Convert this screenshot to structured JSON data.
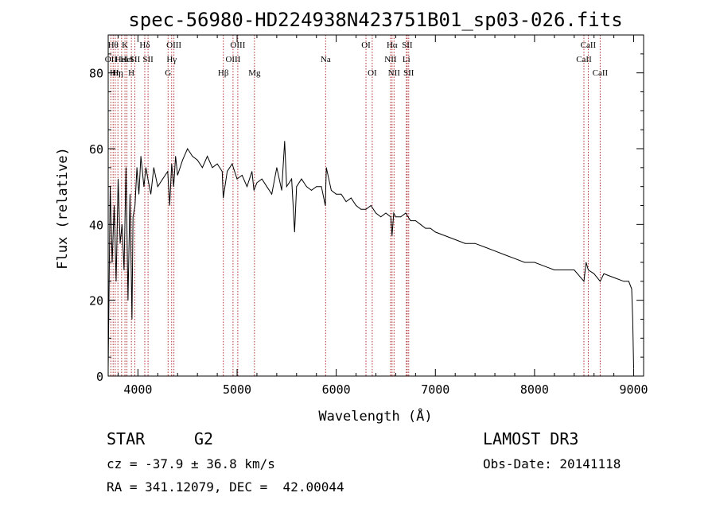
{
  "chart_data": {
    "type": "line",
    "title": "spec-56980-HD224938N423751B01_sp03-026.fits",
    "xlabel": "Wavelength (Å)",
    "ylabel": "Flux (relative)",
    "xlim": [
      3700,
      9100
    ],
    "ylim": [
      0,
      90
    ],
    "xticks": [
      4000,
      5000,
      6000,
      7000,
      8000,
      9000
    ],
    "yticks": [
      0,
      20,
      40,
      60,
      80
    ],
    "xtick_labels": [
      "4000",
      "5000",
      "6000",
      "7000",
      "8000",
      "9000"
    ],
    "ytick_labels": [
      "0",
      "20",
      "40",
      "60",
      "80"
    ],
    "series": [
      {
        "name": "spectrum",
        "x": [
          3700,
          3720,
          3740,
          3760,
          3780,
          3800,
          3820,
          3840,
          3860,
          3880,
          3900,
          3920,
          3940,
          3950,
          3970,
          3990,
          4010,
          4030,
          4060,
          4080,
          4100,
          4130,
          4160,
          4200,
          4250,
          4300,
          4320,
          4340,
          4360,
          4380,
          4400,
          4450,
          4500,
          4550,
          4600,
          4650,
          4700,
          4750,
          4800,
          4850,
          4860,
          4900,
          4950,
          5000,
          5050,
          5100,
          5150,
          5170,
          5200,
          5250,
          5300,
          5350,
          5400,
          5450,
          5480,
          5500,
          5550,
          5580,
          5600,
          5650,
          5700,
          5750,
          5800,
          5850,
          5890,
          5900,
          5950,
          6000,
          6050,
          6100,
          6150,
          6200,
          6250,
          6300,
          6350,
          6400,
          6450,
          6500,
          6550,
          6563,
          6580,
          6600,
          6650,
          6700,
          6750,
          6800,
          6850,
          6900,
          6950,
          7000,
          7100,
          7200,
          7300,
          7400,
          7500,
          7600,
          7700,
          7800,
          7900,
          8000,
          8100,
          8200,
          8300,
          8400,
          8498,
          8520,
          8542,
          8600,
          8662,
          8700,
          8800,
          8900,
          8950,
          8980,
          8990,
          9000
        ],
        "y": [
          2,
          50,
          30,
          45,
          25,
          52,
          35,
          40,
          28,
          55,
          20,
          48,
          15,
          42,
          45,
          55,
          48,
          58,
          50,
          55,
          52,
          48,
          55,
          50,
          52,
          54,
          45,
          56,
          50,
          58,
          53,
          57,
          60,
          58,
          57,
          55,
          58,
          55,
          56,
          54,
          47,
          54,
          56,
          52,
          53,
          50,
          54,
          49,
          51,
          52,
          50,
          48,
          55,
          49,
          62,
          50,
          52,
          38,
          50,
          52,
          50,
          49,
          50,
          50,
          45,
          55,
          49,
          48,
          48,
          46,
          47,
          45,
          44,
          44,
          45,
          43,
          42,
          43,
          42,
          37,
          43,
          42,
          42,
          43,
          41,
          41,
          40,
          39,
          39,
          38,
          37,
          36,
          35,
          35,
          34,
          33,
          32,
          31,
          30,
          30,
          29,
          28,
          28,
          28,
          25,
          30,
          28,
          27,
          25,
          27,
          26,
          25,
          25,
          23,
          15,
          2
        ]
      }
    ],
    "lines": [
      {
        "x": 3727,
        "label": "OII",
        "row": 2
      },
      {
        "x": 3750,
        "label": "Hθ",
        "row": 1
      },
      {
        "x": 3771,
        "label": "Hη",
        "row": 3
      },
      {
        "x": 3798,
        "label": "Hη",
        "row": 3
      },
      {
        "x": 3835,
        "label": "HeI",
        "row": 2
      },
      {
        "x": 3869,
        "label": "K",
        "row": 1
      },
      {
        "x": 3889,
        "label": "HeI",
        "row": 2
      },
      {
        "x": 3934,
        "label": "H",
        "row": 3
      },
      {
        "x": 3969,
        "label": "SII",
        "row": 2
      },
      {
        "x": 4069,
        "label": "Hδ",
        "row": 1
      },
      {
        "x": 4102,
        "label": "SII",
        "row": 2
      },
      {
        "x": 4304,
        "label": "G",
        "row": 3
      },
      {
        "x": 4340,
        "label": "Hγ",
        "row": 2
      },
      {
        "x": 4363,
        "label": "OIII",
        "row": 1
      },
      {
        "x": 4861,
        "label": "Hβ",
        "row": 3
      },
      {
        "x": 4959,
        "label": "OIII",
        "row": 2
      },
      {
        "x": 5007,
        "label": "OIII",
        "row": 1
      },
      {
        "x": 5175,
        "label": "Mg",
        "row": 3
      },
      {
        "x": 5893,
        "label": "Na",
        "row": 2
      },
      {
        "x": 6300,
        "label": "OI",
        "row": 1
      },
      {
        "x": 6363,
        "label": "OI",
        "row": 3
      },
      {
        "x": 6548,
        "label": "NII",
        "row": 2
      },
      {
        "x": 6563,
        "label": "Hα",
        "row": 1
      },
      {
        "x": 6583,
        "label": "NII",
        "row": 3
      },
      {
        "x": 6707,
        "label": "Li",
        "row": 2
      },
      {
        "x": 6716,
        "label": "SII",
        "row": 1
      },
      {
        "x": 6731,
        "label": "SII",
        "row": 3
      },
      {
        "x": 8498,
        "label": "CaII",
        "row": 2
      },
      {
        "x": 8542,
        "label": "CaII",
        "row": 1
      },
      {
        "x": 8662,
        "label": "CaII",
        "row": 3
      }
    ]
  },
  "info": {
    "class_label": "STAR",
    "subclass": "G2",
    "survey": "LAMOST DR3",
    "redshift": "cz = -37.9 ± 36.8 km/s",
    "obs_date": "Obs-Date: 20141118",
    "coords": "RA = 341.12079, DEC =  42.00044"
  },
  "colors": {
    "spectrum": "#000000",
    "line_marker": "#b03030",
    "axis": "#000000"
  }
}
